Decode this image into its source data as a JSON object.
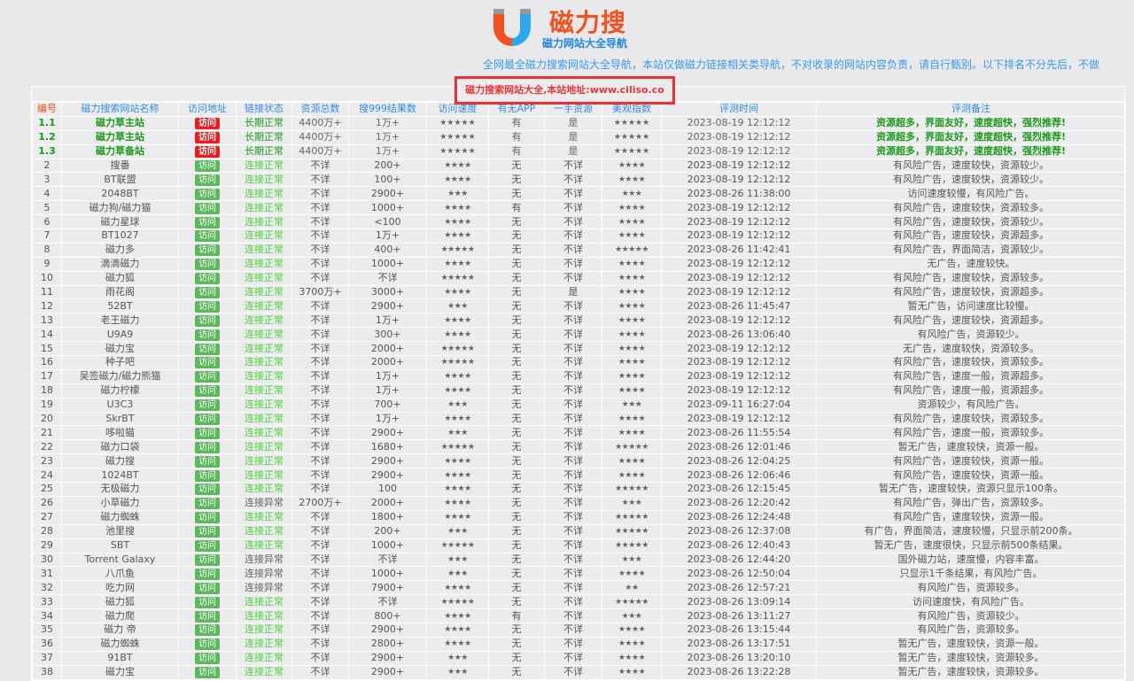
{
  "header": {
    "brand": "磁力搜",
    "subtitle": "磁力网站大全导航",
    "description": "全网最全磁力搜索网站大全导航，本站仅做磁力链接相关类导航，不对收录的网站内容负责，请自行甄别。以下排名不分先后，不做",
    "notice": "磁力搜索网站大全,本站地址:www.ciliso.co",
    "logo_colors": {
      "left": "#f4511e",
      "right": "#29a8f0"
    }
  },
  "table": {
    "columns": [
      "编号",
      "磁力搜索网站名称",
      "访问地址",
      "链接状态",
      "资源总数",
      "搜999结果数",
      "访问速度",
      "有无APP",
      "一手资源",
      "美观指数",
      "评测时间",
      "评测备注"
    ],
    "visit_label": "访问",
    "rows": [
      [
        "1.1",
        "磁力草主站",
        "长期正常",
        "4400万+",
        "1万+",
        "★★★★★",
        "有",
        "是",
        "★★★★★",
        "2023-08-19 12:12:12",
        "资源超多，界面友好，速度超快，强烈推荐!"
      ],
      [
        "1.2",
        "磁力草主站",
        "长期正常",
        "4400万+",
        "1万+",
        "★★★★★",
        "有",
        "是",
        "★★★★★",
        "2023-08-19 12:12:12",
        "资源超多，界面友好，速度超快，强烈推荐!"
      ],
      [
        "1.3",
        "磁力草备站",
        "长期正常",
        "4400万+",
        "1万+",
        "★★★★★",
        "有",
        "是",
        "★★★★★",
        "2023-08-19 12:12:12",
        "资源超多，界面友好，速度超快，强烈推荐!"
      ],
      [
        "2",
        "搜番",
        "连接正常",
        "不详",
        "200+",
        "★★★★",
        "无",
        "不详",
        "★★★★",
        "2023-08-19 12:12:12",
        "有风险广告，速度较快，资源较少。"
      ],
      [
        "3",
        "BT联盟",
        "连接正常",
        "不详",
        "100+",
        "★★★★",
        "无",
        "不详",
        "★★★★",
        "2023-08-19 12:12:12",
        "有风险广告，速度较快，资源较少。"
      ],
      [
        "4",
        "2048BT",
        "连接正常",
        "不详",
        "2900+",
        "★★★",
        "无",
        "不详",
        "★★★",
        "2023-08-26 11:38:00",
        "访问速度较慢，有风险广告。"
      ],
      [
        "5",
        "磁力狗/磁力猫",
        "连接正常",
        "不详",
        "1000+",
        "★★★★",
        "有",
        "不详",
        "★★★★",
        "2023-08-19 12:12:12",
        "有风险广告，速度较快，资源较多。"
      ],
      [
        "6",
        "磁力星球",
        "连接正常",
        "不详",
        "<100",
        "★★★★",
        "无",
        "不详",
        "★★★★",
        "2023-08-19 12:12:12",
        "有风险广告，速度较快，资源较少。"
      ],
      [
        "7",
        "BT1027",
        "连接正常",
        "不详",
        "1万+",
        "★★★★",
        "无",
        "不详",
        "★★★★",
        "2023-08-19 12:12:12",
        "有风险广告，速度较快，资源超多。"
      ],
      [
        "8",
        "磁力多",
        "连接正常",
        "不详",
        "400+",
        "★★★★★",
        "无",
        "不详",
        "★★★★★",
        "2023-08-26 11:42:41",
        "有风险广告，界面简洁，资源较少。"
      ],
      [
        "9",
        "滴滴磁力",
        "连接正常",
        "不详",
        "1000+",
        "★★★★",
        "无",
        "不详",
        "★★★★",
        "2023-08-19 12:12:12",
        "无广告，速度较快。"
      ],
      [
        "10",
        "磁力狐",
        "连接正常",
        "不详",
        "不详",
        "★★★★★",
        "无",
        "不详",
        "★★★★",
        "2023-08-19 12:12:12",
        "有风险广告，速度较快，资源较多。"
      ],
      [
        "11",
        "雨花阁",
        "连接正常",
        "3700万+",
        "3000+",
        "★★★★",
        "无",
        "是",
        "★★★★",
        "2023-08-19 12:12:12",
        "有风险广告，速度较快，资源超多。"
      ],
      [
        "12",
        "52BT",
        "连接正常",
        "不详",
        "2900+",
        "★★★",
        "无",
        "不详",
        "★★★★",
        "2023-08-26 11:45:47",
        "暂无广告，访问速度比较慢。"
      ],
      [
        "13",
        "老王磁力",
        "连接正常",
        "不详",
        "1万+",
        "★★★★",
        "无",
        "不详",
        "★★★★",
        "2023-08-19 12:12:12",
        "有风险广告，速度较快，资源超多。"
      ],
      [
        "14",
        "U9A9",
        "连接正常",
        "不详",
        "300+",
        "★★★★",
        "无",
        "不详",
        "★★★★",
        "2023-08-26 13:06:40",
        "有风险广告，资源较少。"
      ],
      [
        "15",
        "磁力宝",
        "连接正常",
        "不详",
        "2000+",
        "★★★★★",
        "无",
        "不详",
        "★★★★",
        "2023-08-19 12:12:12",
        "无广告，速度较快，资源较多。"
      ],
      [
        "16",
        "种子吧",
        "连接正常",
        "不详",
        "2000+",
        "★★★★★",
        "无",
        "不详",
        "★★★★",
        "2023-08-19 12:12:12",
        "有风险广告，速度较快，资源较多。"
      ],
      [
        "17",
        "吴签磁力/磁力熊猫",
        "连接正常",
        "不详",
        "1万+",
        "★★★★",
        "无",
        "不详",
        "★★★★",
        "2023-08-19 12:12:12",
        "有风险广告，速度一般，资源超多。"
      ],
      [
        "18",
        "磁力柠檬",
        "连接正常",
        "不详",
        "1万+",
        "★★★★",
        "无",
        "不详",
        "★★★★",
        "2023-08-19 12:12:12",
        "有风险广告，速度一般，资源超多。"
      ],
      [
        "19",
        "U3C3",
        "连接正常",
        "不详",
        "700+",
        "★★★",
        "无",
        "不详",
        "★★★",
        "2023-09-11 16:27:04",
        "资源较少，有风险广告。"
      ],
      [
        "20",
        "SkrBT",
        "连接正常",
        "不详",
        "1万+",
        "★★★★",
        "无",
        "不详",
        "★★★★",
        "2023-08-19 12:12:12",
        "有风险广告，速度较快，资源较多。"
      ],
      [
        "21",
        "哆啦猫",
        "连接正常",
        "不详",
        "2900+",
        "★★★",
        "无",
        "不详",
        "★★★★",
        "2023-08-26 11:55:54",
        "有风险广告，速度一般，资源较多。"
      ],
      [
        "22",
        "磁力口袋",
        "连接正常",
        "不详",
        "1680+",
        "★★★★★",
        "无",
        "不详",
        "★★★★★",
        "2023-08-26 12:01:46",
        "暂无广告，速度较快，资源一般。"
      ],
      [
        "23",
        "磁力搜",
        "连接正常",
        "不详",
        "2900+",
        "★★★★",
        "无",
        "不详",
        "★★★★",
        "2023-08-26 12:04:25",
        "有风险广告，速度较快，资源一般。"
      ],
      [
        "24",
        "1024BT",
        "连接正常",
        "不详",
        "2900+",
        "★★★★",
        "无",
        "不详",
        "★★★★",
        "2023-08-26 12:06:46",
        "有风险广告，速度较快，资源一般。"
      ],
      [
        "25",
        "无极磁力",
        "连接正常",
        "不详",
        "100",
        "★★★★",
        "无",
        "不详",
        "★★★★★",
        "2023-08-26 12:15:45",
        "暂无广告，速度较快，资源只显示100条。"
      ],
      [
        "26",
        "小草磁力",
        "连接异常",
        "2700万+",
        "2000+",
        "★★★★",
        "无",
        "不详",
        "★★★",
        "2023-08-26 12:20:42",
        "有风险广告，弹出广告，资源较多。"
      ],
      [
        "27",
        "磁力蜘蛛",
        "连接正常",
        "不详",
        "1800+",
        "★★★★",
        "无",
        "不详",
        "★★★★★",
        "2023-08-26 12:24:48",
        "有风险广告，速度较快，资源一般。"
      ],
      [
        "28",
        "池里搜",
        "连接正常",
        "不详",
        "200+",
        "★★★",
        "无",
        "不详",
        "★★★★★",
        "2023-08-26 12:37:08",
        "有广告，界面简洁，速度较慢，只显示前200条。"
      ],
      [
        "29",
        "SBT",
        "连接正常",
        "不详",
        "1000+",
        "★★★★★",
        "无",
        "不详",
        "★★★★★",
        "2023-08-26 12:40:43",
        "暂无广告，速度很快，只显示前500条结果。"
      ],
      [
        "30",
        "Torrent Galaxy",
        "连接异常",
        "不详",
        "不详",
        "★★★",
        "无",
        "不详",
        "★★★",
        "2023-08-26 12:44:20",
        "国外磁力站，速度慢，内容丰富。"
      ],
      [
        "31",
        "八爪鱼",
        "连接异常",
        "不详",
        "1000+",
        "★★★",
        "无",
        "不详",
        "★★★★",
        "2023-08-26 12:50:04",
        "只显示1千条结果，有风险广告。"
      ],
      [
        "32",
        "吃力网",
        "连接异常",
        "不详",
        "7900+",
        "★★★★",
        "无",
        "不详",
        "★★",
        "2023-08-26 12:57:21",
        "有风险广告，资源较多。"
      ],
      [
        "33",
        "磁力狐",
        "连接正常",
        "不详",
        "不详",
        "★★★★★",
        "无",
        "不详",
        "★★★★★",
        "2023-08-26 13:09:14",
        "访问速度快，有风险广告。"
      ],
      [
        "34",
        "磁力爬",
        "连接正常",
        "不详",
        "800+",
        "★★★★",
        "有",
        "不详",
        "★★★",
        "2023-08-26 13:11:27",
        "有风险广告，资源较少。"
      ],
      [
        "35",
        "磁力 帝",
        "连接正常",
        "不详",
        "2900+",
        "★★★★",
        "无",
        "不详",
        "★★★★",
        "2023-08-26 13:15:44",
        "有风险广告，资源较多。"
      ],
      [
        "36",
        "磁力蜘蛛",
        "连接正常",
        "不详",
        "2800+",
        "★★★★",
        "无",
        "不详",
        "★★★★",
        "2023-08-26 13:17:51",
        "暂无广告，速度较快，资源一般。"
      ],
      [
        "37",
        "91BT",
        "连接正常",
        "不详",
        "2900+",
        "★★★",
        "无",
        "不详",
        "★★★★",
        "2023-08-26 13:20:10",
        "暂无广告，速度较快，资源较多。"
      ],
      [
        "38",
        "磁力宝",
        "连接正常",
        "不详",
        "2900+",
        "★★★",
        "无",
        "不详",
        "★★★★",
        "2023-08-26 13:22:28",
        "暂无广告，速度较快，资源较多。"
      ]
    ]
  }
}
